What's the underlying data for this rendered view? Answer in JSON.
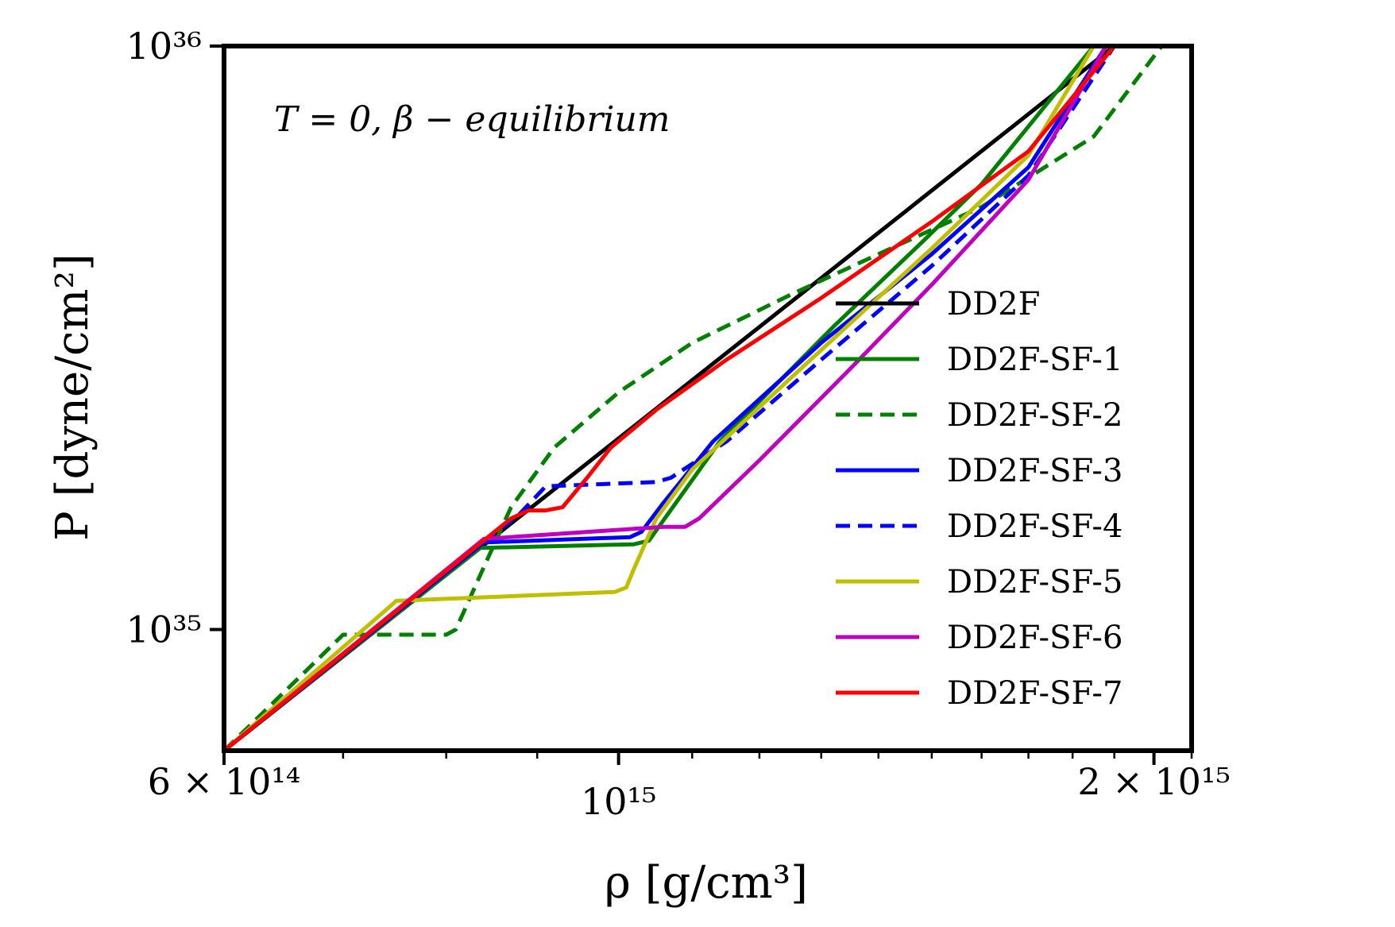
{
  "chart_data": {
    "type": "line",
    "title": "",
    "annotation": "T = 0,  β − equilibrium",
    "xlabel": "ρ [g/cm³]",
    "ylabel": "P [dyne/cm²]",
    "xscale": "log",
    "yscale": "log",
    "xlim": [
      600000000000000.0,
      2100000000000000.0
    ],
    "ylim": [
      6.2e+34,
      1e+36
    ],
    "x_ticks": [
      {
        "value": 600000000000000.0,
        "label": "6 × 10¹⁴"
      },
      {
        "value": 1000000000000000.0,
        "label": "10¹⁵"
      },
      {
        "value": 2000000000000000.0,
        "label": "2 × 10¹⁵"
      }
    ],
    "y_ticks": [
      {
        "value": 1e+35,
        "label": "10³⁵"
      },
      {
        "value": 1e+36,
        "label": "10³⁶"
      }
    ],
    "legend_position": "right",
    "series": [
      {
        "name": "DD2F",
        "color": "#000000",
        "dash": "solid",
        "x": [
          600000000000000.0,
          1900000000000000.0
        ],
        "y": [
          6.2e+34,
          1e+36
        ]
      },
      {
        "name": "DD2F-SF-1",
        "color": "#008000",
        "dash": "solid",
        "x": [
          600000000000000.0,
          836000000000000.0,
          1020000000000000.0,
          1040000000000000.0,
          1140000000000000.0,
          1320000000000000.0,
          1480000000000000.0,
          1600000000000000.0,
          1850000000000000.0
        ],
        "y": [
          6.2e+34,
          1.38e+35,
          1.4e+35,
          1.42e+35,
          2.1e+35,
          3.3e+35,
          4.6e+35,
          5.8e+35,
          1e+36
        ]
      },
      {
        "name": "DD2F-SF-2",
        "color": "#008000",
        "dash": "dashed",
        "x": [
          600000000000000.0,
          700000000000000.0,
          800000000000000.0,
          810000000000000.0,
          840000000000000.0,
          870000000000000.0,
          920000000000000.0,
          1000000000000000.0,
          1100000000000000.0,
          1250000000000000.0,
          1400000000000000.0,
          1600000000000000.0,
          1850000000000000.0,
          2020000000000000.0
        ],
        "y": [
          6.2e+34,
          9.8e+34,
          9.8e+34,
          1e+35,
          1.28e+35,
          1.62e+35,
          2.05e+35,
          2.55e+35,
          3.1e+35,
          3.75e+35,
          4.4e+35,
          5.3e+35,
          7e+35,
          1e+36
        ]
      },
      {
        "name": "DD2F-SF-3",
        "color": "#0000ff",
        "dash": "solid",
        "x": [
          600000000000000.0,
          840000000000000.0,
          1015000000000000.0,
          1030000000000000.0,
          1060000000000000.0,
          1130000000000000.0,
          1300000000000000.0,
          1500000000000000.0,
          1700000000000000.0,
          1880000000000000.0
        ],
        "y": [
          6.2e+34,
          1.41e+35,
          1.44e+35,
          1.47e+35,
          1.65e+35,
          2.1e+35,
          3.1e+35,
          4.4e+35,
          6.2e+35,
          1e+36
        ]
      },
      {
        "name": "DD2F-SF-4",
        "color": "#0000ff",
        "dash": "dashed",
        "x": [
          600000000000000.0,
          880000000000000.0,
          910000000000000.0,
          1050000000000000.0,
          1070000000000000.0,
          1150000000000000.0,
          1300000000000000.0,
          1500000000000000.0,
          1700000000000000.0,
          1900000000000000.0
        ],
        "y": [
          6.2e+34,
          1.58e+35,
          1.76e+35,
          1.79e+35,
          1.82e+35,
          2.1e+35,
          2.9e+35,
          4.2e+35,
          6e+35,
          1e+36
        ]
      },
      {
        "name": "DD2F-SF-5",
        "color": "#bfbf00",
        "dash": "solid",
        "x": [
          600000000000000.0,
          750000000000000.0,
          995000000000000.0,
          1010000000000000.0,
          1020000000000000.0,
          1050000000000000.0,
          1100000000000000.0,
          1250000000000000.0,
          1500000000000000.0,
          1700000000000000.0,
          1850000000000000.0
        ],
        "y": [
          6.2e+34,
          1.12e+35,
          1.16e+35,
          1.18e+35,
          1.27e+35,
          1.55e+35,
          1.88e+35,
          2.7e+35,
          4.5e+35,
          6.5e+35,
          1e+36
        ]
      },
      {
        "name": "DD2F-SF-6",
        "color": "#bf00bf",
        "dash": "solid",
        "x": [
          600000000000000.0,
          840000000000000.0,
          1060000000000000.0,
          1090000000000000.0,
          1110000000000000.0,
          1200000000000000.0,
          1350000000000000.0,
          1500000000000000.0,
          1700000000000000.0,
          1880000000000000.0
        ],
        "y": [
          6.2e+34,
          1.43e+35,
          1.5e+35,
          1.5e+35,
          1.55e+35,
          1.95e+35,
          2.8e+35,
          3.9e+35,
          5.9e+35,
          1e+36
        ]
      },
      {
        "name": "DD2F-SF-7",
        "color": "#ff0000",
        "dash": "solid",
        "x": [
          600000000000000.0,
          870000000000000.0,
          890000000000000.0,
          910000000000000.0,
          930000000000000.0,
          960000000000000.0,
          990000000000000.0,
          1050000000000000.0,
          1150000000000000.0,
          1300000000000000.0,
          1500000000000000.0,
          1700000000000000.0,
          1900000000000000.0
        ],
        "y": [
          6.2e+34,
          1.55e+35,
          1.6e+35,
          1.6e+35,
          1.62e+35,
          1.82e+35,
          2.05e+35,
          2.38e+35,
          2.9e+35,
          3.7e+35,
          5e+35,
          6.6e+35,
          1e+36
        ]
      }
    ]
  }
}
